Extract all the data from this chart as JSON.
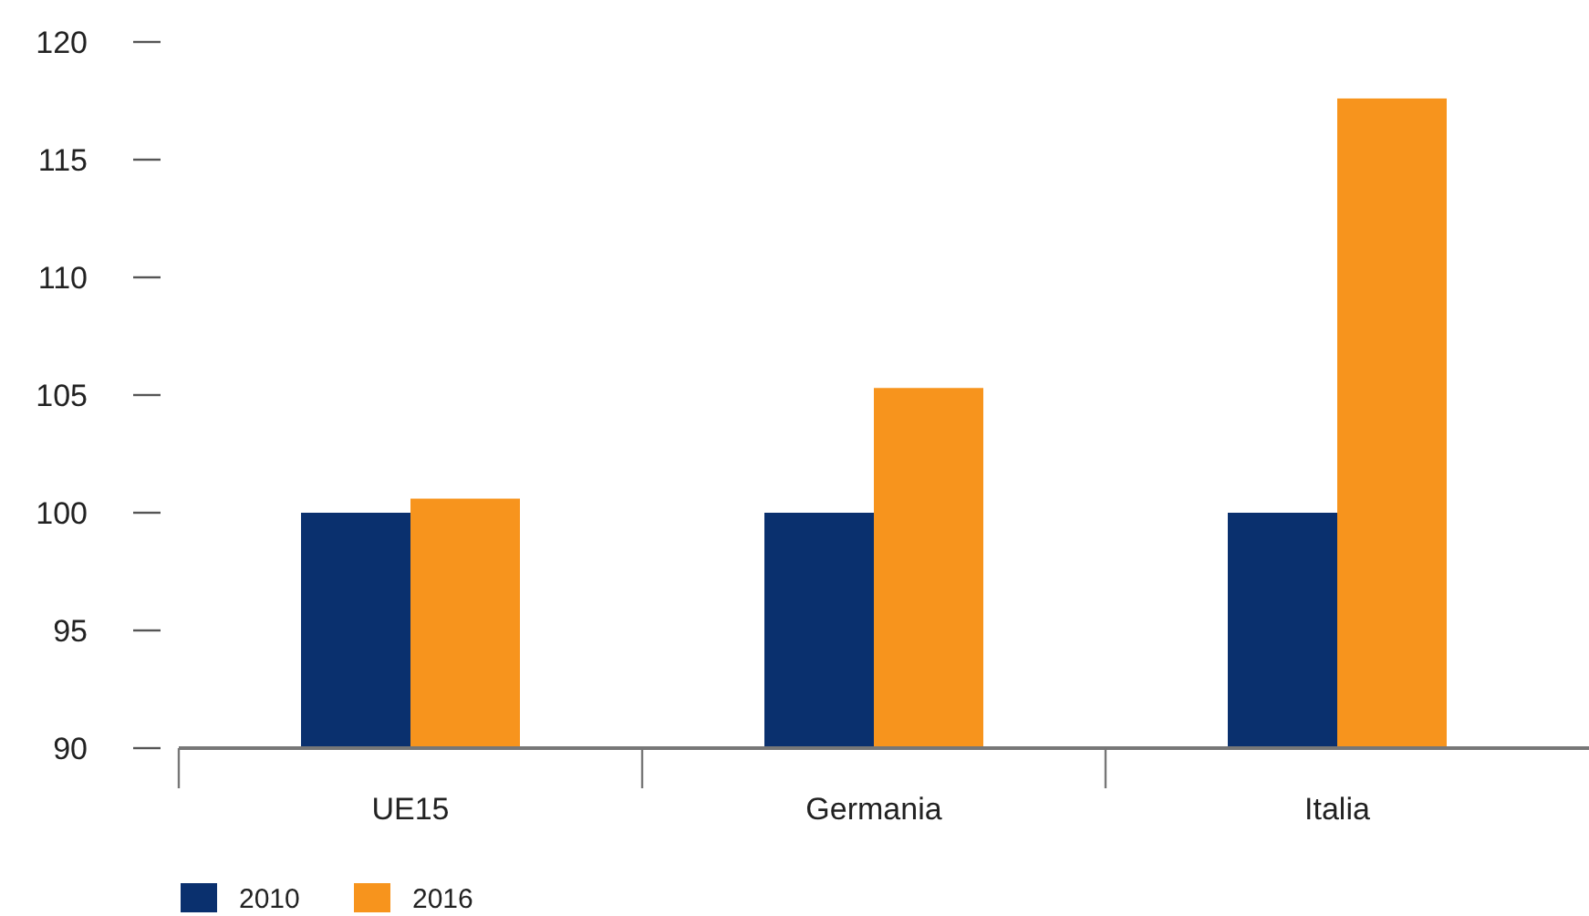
{
  "chart_data": {
    "type": "bar",
    "categories": [
      "UE15",
      "Germania",
      "Italia"
    ],
    "series": [
      {
        "name": "2010",
        "color": "#0a306e",
        "values": [
          100,
          100,
          100
        ]
      },
      {
        "name": "2016",
        "color": "#f7941d",
        "values": [
          100.6,
          105.3,
          117.6
        ]
      }
    ],
    "ylim": [
      90,
      120
    ],
    "yticks": [
      90,
      95,
      100,
      105,
      110,
      115,
      120
    ],
    "grid": false,
    "legend": "bottom left"
  }
}
